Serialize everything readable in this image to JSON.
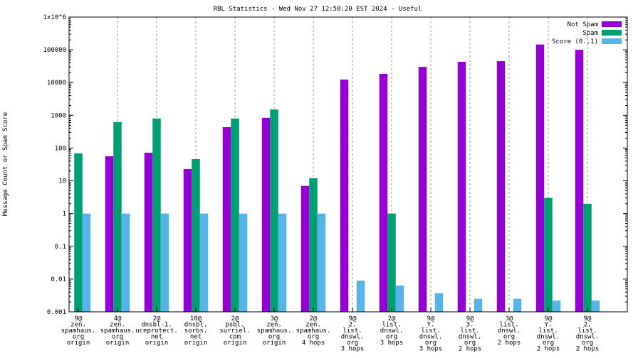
{
  "chart_data": {
    "type": "bar",
    "title": "RBL Statistics - Wed Nov 27 12:58:20 EST 2024 - Useful",
    "ylabel": "Message Count or Spam Score",
    "xlabel": "",
    "yscale": "log",
    "ylim": [
      0.001,
      1000000
    ],
    "yticks": [
      "1x10^6",
      "100000",
      "10000",
      "1000",
      "100",
      "10",
      "1",
      "0.1",
      "0.01",
      "0.001"
    ],
    "grid": "vertical dashed at categories",
    "legend_position": "top-right",
    "categories": [
      [
        "9@",
        "zen.",
        "spamhaus.",
        "org",
        "origin"
      ],
      [
        "4@",
        "zen.",
        "spamhaus.",
        "org",
        "origin"
      ],
      [
        "2@",
        "dnsbl-1.",
        "uceprotect.",
        "net",
        "origin"
      ],
      [
        "10@",
        "dnsbl.",
        "sorbs.",
        "net",
        "origin"
      ],
      [
        "2@",
        "psbl.",
        "surriel.",
        "com",
        "origin"
      ],
      [
        "3@",
        "zen.",
        "spamhaus.",
        "org",
        "origin"
      ],
      [
        "2@",
        "zen.",
        "spamhaus.",
        "org",
        "4 hops"
      ],
      [
        "9@",
        "2.",
        "list.",
        "dnswl.",
        "org",
        "3 hops"
      ],
      [
        "2@",
        "list.",
        "dnswl.",
        "org",
        "3 hops"
      ],
      [
        "9@",
        "Y.",
        "list.",
        "dnswl.",
        "org",
        "3 hops"
      ],
      [
        "9@",
        "3.",
        "list.",
        "dnswl.",
        "org",
        "2 hops"
      ],
      [
        "3@",
        "list.",
        "dnswl.",
        "org",
        "2 hops"
      ],
      [
        "9@",
        "Y.",
        "list.",
        "dnswl.",
        "org",
        "2 hops"
      ],
      [
        "9@",
        "2.",
        "list.",
        "dnswl.",
        "org",
        "2 hops"
      ]
    ],
    "series": [
      {
        "name": "Not Spam",
        "color": "#9400d3",
        "values": [
          null,
          56,
          72,
          23,
          435,
          840,
          7,
          12300,
          18500,
          30000,
          43000,
          45000,
          145000,
          100000
        ]
      },
      {
        "name": "Spam",
        "color": "#009e73",
        "values": [
          69,
          620,
          800,
          46,
          800,
          1500,
          12,
          null,
          1,
          null,
          null,
          null,
          3,
          2
        ]
      },
      {
        "name": "Score (0..1)",
        "color": "#56b4e9",
        "values": [
          1,
          1,
          1,
          1,
          1,
          1,
          1,
          0.009,
          0.0063,
          0.0037,
          0.0025,
          0.0025,
          0.0022,
          0.0022
        ]
      }
    ]
  }
}
